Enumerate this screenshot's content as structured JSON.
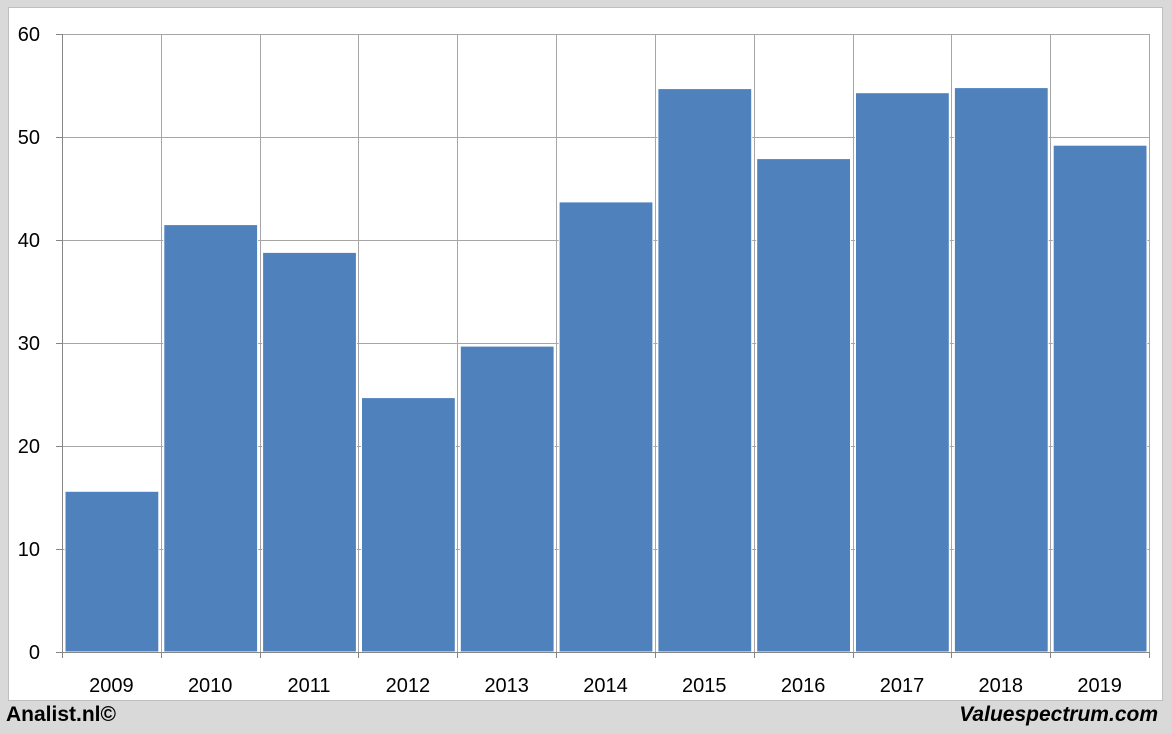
{
  "chart_data": {
    "type": "bar",
    "categories": [
      "2009",
      "2010",
      "2011",
      "2012",
      "2013",
      "2014",
      "2015",
      "2016",
      "2017",
      "2018",
      "2019"
    ],
    "values": [
      15.6,
      41.5,
      38.8,
      24.7,
      29.7,
      43.7,
      54.7,
      47.9,
      54.3,
      54.8,
      49.2
    ],
    "yticks": [
      0,
      10,
      20,
      30,
      40,
      50,
      60
    ],
    "ylim": [
      0,
      60
    ],
    "grid": true,
    "bar_color": "#4f81bd",
    "grid_color": "#a6a6a6"
  },
  "footer": {
    "left": "Analist.nl©",
    "right": "Valuespectrum.com"
  }
}
